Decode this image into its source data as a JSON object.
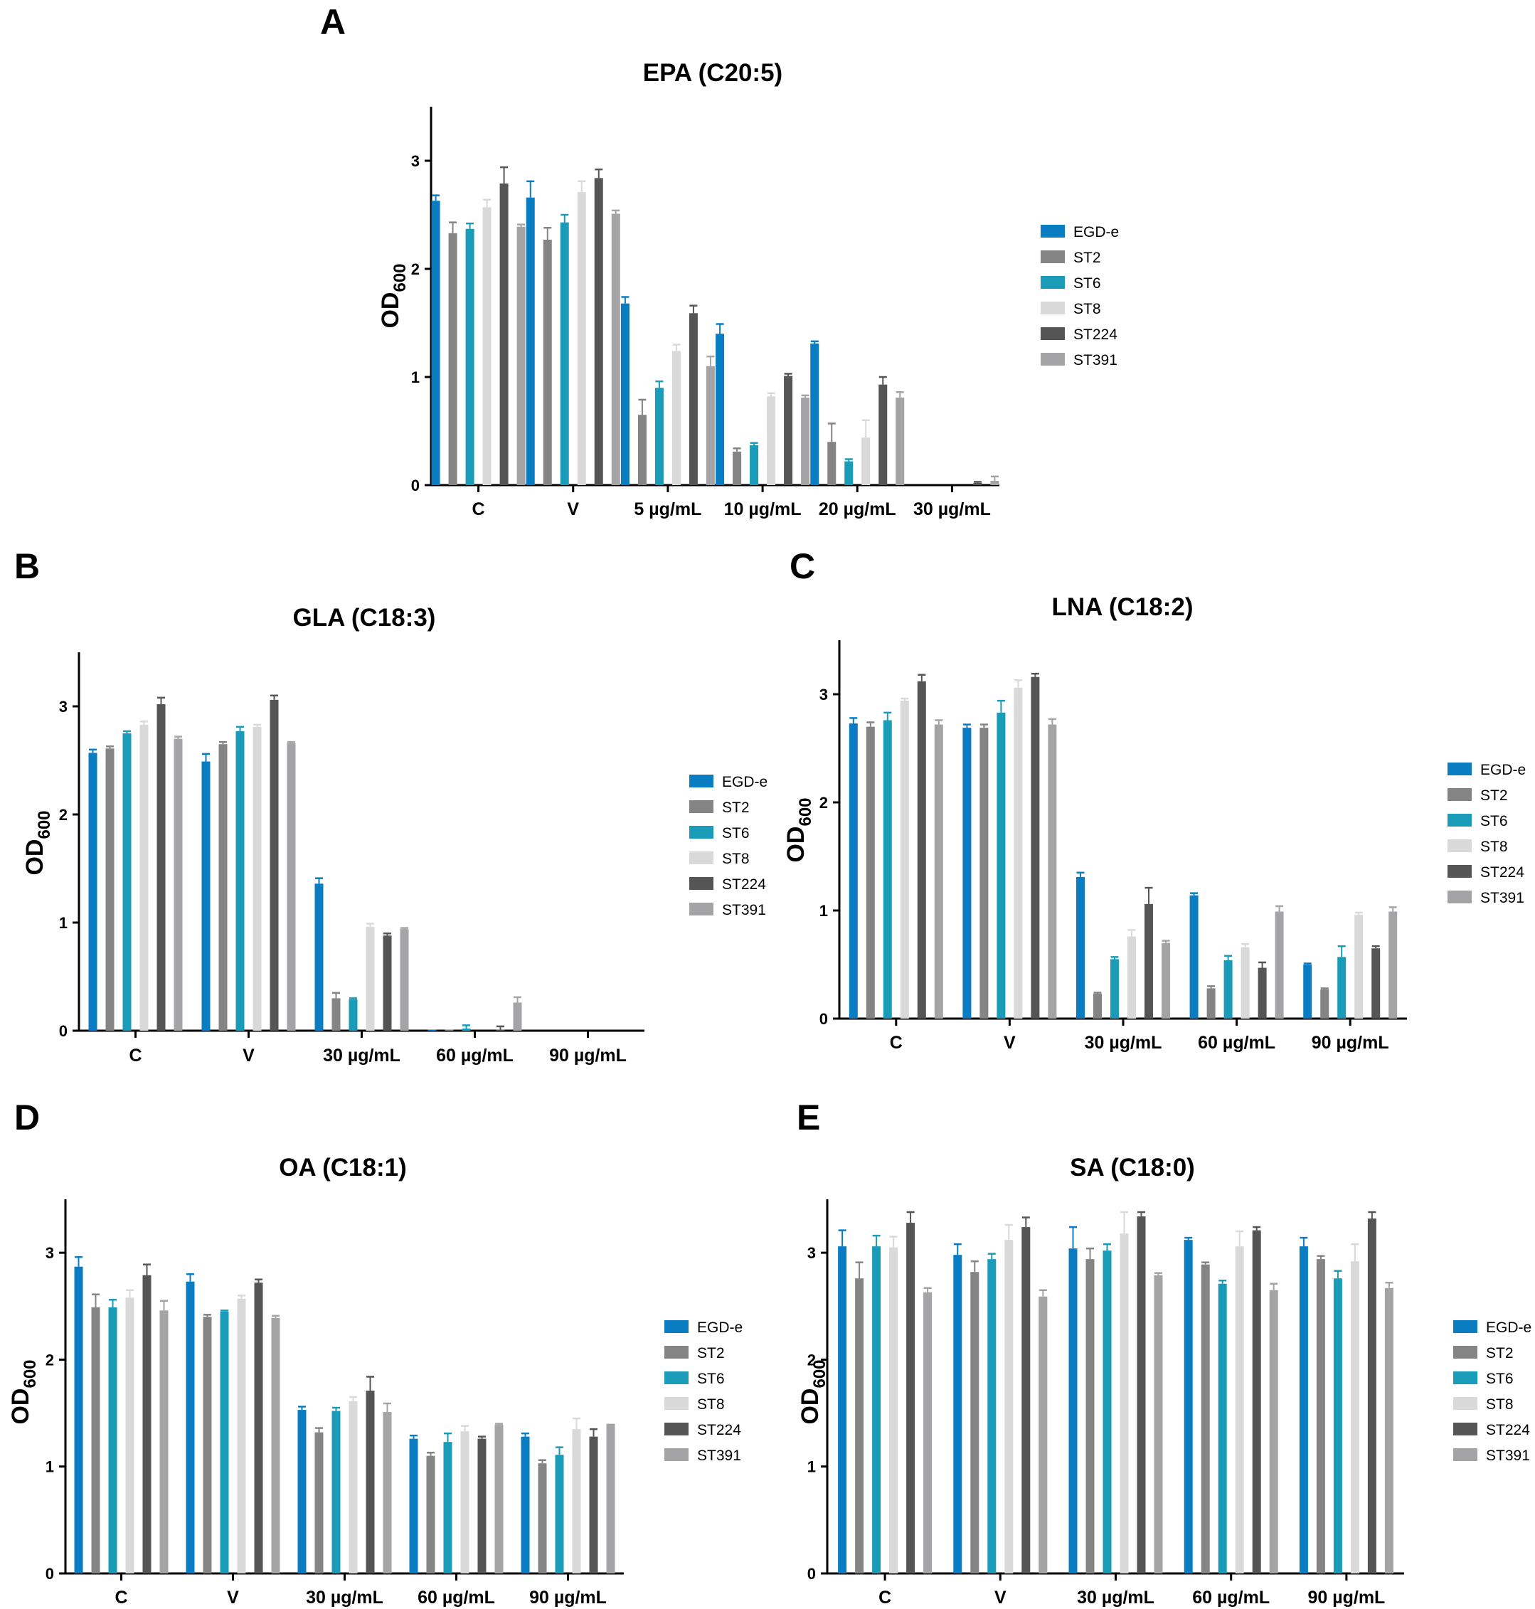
{
  "figure": {
    "background": "#ffffff"
  },
  "series_style": [
    {
      "name": "EGD-e",
      "color": "#0a7dc2"
    },
    {
      "name": "ST2",
      "color": "#848484"
    },
    {
      "name": "ST6",
      "color": "#1a9bb7"
    },
    {
      "name": "ST8",
      "color": "#d9d9d9"
    },
    {
      "name": "ST224",
      "color": "#555555"
    },
    {
      "name": "ST391",
      "color": "#a4a4a6"
    }
  ],
  "chart_data": [
    {
      "panel": "A",
      "type": "bar",
      "title": "EPA (C20:5)",
      "ylabel": "OD600",
      "ylabel_main": "OD",
      "ylabel_sub": "600",
      "ylim": [
        0,
        3.5
      ],
      "yticks": [
        "0",
        "1",
        "2",
        "3"
      ],
      "categories": [
        "C",
        "V",
        "5 µg/mL",
        "10 µg/mL",
        "20 µg/mL",
        "30 µg/mL"
      ],
      "series": [
        {
          "name": "EGD-e",
          "values": [
            2.63,
            2.66,
            1.68,
            1.4,
            1.31,
            0.0
          ],
          "errors": [
            0.05,
            0.15,
            0.06,
            0.09,
            0.02,
            0.0
          ]
        },
        {
          "name": "ST2",
          "values": [
            2.33,
            2.27,
            0.65,
            0.31,
            0.4,
            0.0
          ],
          "errors": [
            0.1,
            0.11,
            0.14,
            0.03,
            0.17,
            0.0
          ]
        },
        {
          "name": "ST6",
          "values": [
            2.37,
            2.43,
            0.9,
            0.37,
            0.22,
            0.0
          ],
          "errors": [
            0.05,
            0.07,
            0.06,
            0.02,
            0.02,
            0.0
          ]
        },
        {
          "name": "ST8",
          "values": [
            2.57,
            2.71,
            1.24,
            0.82,
            0.44,
            0.0
          ],
          "errors": [
            0.07,
            0.1,
            0.06,
            0.03,
            0.16,
            0.0
          ]
        },
        {
          "name": "ST224",
          "values": [
            2.79,
            2.84,
            1.59,
            1.01,
            0.93,
            0.02
          ],
          "errors": [
            0.15,
            0.08,
            0.07,
            0.02,
            0.07,
            0.01
          ]
        },
        {
          "name": "ST391",
          "values": [
            2.39,
            2.51,
            1.1,
            0.81,
            0.81,
            0.04
          ],
          "errors": [
            0.02,
            0.03,
            0.09,
            0.02,
            0.05,
            0.04
          ]
        }
      ]
    },
    {
      "panel": "B",
      "type": "bar",
      "title": "GLA (C18:3)",
      "ylabel": "OD600",
      "ylabel_main": "OD",
      "ylabel_sub": "600",
      "ylim": [
        0,
        3.5
      ],
      "yticks": [
        "0",
        "1",
        "2",
        "3"
      ],
      "categories": [
        "C",
        "V",
        "30 µg/mL",
        "60  µg/mL",
        "90 µg/mL"
      ],
      "series": [
        {
          "name": "EGD-e",
          "values": [
            2.57,
            2.49,
            1.36,
            0.01,
            0.0
          ],
          "errors": [
            0.03,
            0.07,
            0.05,
            0.0,
            0.0
          ]
        },
        {
          "name": "ST2",
          "values": [
            2.61,
            2.65,
            0.3,
            0.01,
            0.0
          ],
          "errors": [
            0.02,
            0.02,
            0.05,
            0.0,
            0.0
          ]
        },
        {
          "name": "ST6",
          "values": [
            2.75,
            2.77,
            0.29,
            0.02,
            0.0
          ],
          "errors": [
            0.02,
            0.04,
            0.01,
            0.03,
            0.0
          ]
        },
        {
          "name": "ST8",
          "values": [
            2.83,
            2.81,
            0.96,
            0.0,
            0.0
          ],
          "errors": [
            0.03,
            0.02,
            0.03,
            0.0,
            0.0
          ]
        },
        {
          "name": "ST224",
          "values": [
            3.02,
            3.06,
            0.88,
            0.01,
            0.0
          ],
          "errors": [
            0.06,
            0.04,
            0.02,
            0.03,
            0.0
          ]
        },
        {
          "name": "ST391",
          "values": [
            2.7,
            2.66,
            0.94,
            0.26,
            0.0
          ],
          "errors": [
            0.02,
            0.01,
            0.01,
            0.05,
            0.0
          ]
        }
      ]
    },
    {
      "panel": "C",
      "type": "bar",
      "title": "LNA (C18:2)",
      "ylabel": "OD600",
      "ylabel_main": "OD",
      "ylabel_sub": "600",
      "ylim": [
        0,
        3.5
      ],
      "yticks": [
        "0",
        "1",
        "2",
        "3"
      ],
      "categories": [
        "C",
        "V",
        "30 µg/mL",
        "60 µg/mL",
        "90 µg/mL"
      ],
      "series": [
        {
          "name": "EGD-e",
          "values": [
            2.73,
            2.69,
            1.31,
            1.14,
            0.5
          ],
          "errors": [
            0.05,
            0.03,
            0.04,
            0.02,
            0.01
          ]
        },
        {
          "name": "ST2",
          "values": [
            2.7,
            2.69,
            0.23,
            0.28,
            0.27
          ],
          "errors": [
            0.04,
            0.03,
            0.01,
            0.02,
            0.01
          ]
        },
        {
          "name": "ST6",
          "values": [
            2.76,
            2.83,
            0.55,
            0.54,
            0.57
          ],
          "errors": [
            0.07,
            0.11,
            0.02,
            0.04,
            0.1
          ]
        },
        {
          "name": "ST8",
          "values": [
            2.94,
            3.06,
            0.76,
            0.66,
            0.96
          ],
          "errors": [
            0.02,
            0.07,
            0.06,
            0.03,
            0.02
          ]
        },
        {
          "name": "ST224",
          "values": [
            3.12,
            3.16,
            1.06,
            0.47,
            0.65
          ],
          "errors": [
            0.06,
            0.03,
            0.15,
            0.05,
            0.02
          ]
        },
        {
          "name": "ST391",
          "values": [
            2.72,
            2.72,
            0.7,
            0.99,
            0.99
          ],
          "errors": [
            0.04,
            0.05,
            0.02,
            0.05,
            0.04
          ]
        }
      ]
    },
    {
      "panel": "D",
      "type": "bar",
      "title": "OA (C18:1)",
      "ylabel": "OD600",
      "ylabel_main": "OD",
      "ylabel_sub": "600",
      "ylim": [
        0,
        3.5
      ],
      "yticks": [
        "0",
        "1",
        "2",
        "3"
      ],
      "categories": [
        "C",
        "V",
        "30 µg/mL",
        "60 µg/mL",
        "90 µg/mL"
      ],
      "series": [
        {
          "name": "EGD-e",
          "values": [
            2.87,
            2.73,
            1.53,
            1.26,
            1.28
          ],
          "errors": [
            0.09,
            0.07,
            0.03,
            0.03,
            0.03
          ]
        },
        {
          "name": "ST2",
          "values": [
            2.49,
            2.4,
            1.32,
            1.1,
            1.03
          ],
          "errors": [
            0.12,
            0.02,
            0.04,
            0.03,
            0.03
          ]
        },
        {
          "name": "ST6",
          "values": [
            2.49,
            2.45,
            1.52,
            1.23,
            1.11
          ],
          "errors": [
            0.07,
            0.01,
            0.03,
            0.08,
            0.07
          ]
        },
        {
          "name": "ST8",
          "values": [
            2.58,
            2.57,
            1.61,
            1.33,
            1.35
          ],
          "errors": [
            0.07,
            0.03,
            0.04,
            0.05,
            0.1
          ]
        },
        {
          "name": "ST224",
          "values": [
            2.79,
            2.72,
            1.71,
            1.26,
            1.28
          ],
          "errors": [
            0.1,
            0.03,
            0.13,
            0.02,
            0.07
          ]
        },
        {
          "name": "ST391",
          "values": [
            2.46,
            2.39,
            1.51,
            1.39,
            1.4
          ],
          "errors": [
            0.09,
            0.02,
            0.08,
            0.01,
            0.0
          ]
        }
      ]
    },
    {
      "panel": "E",
      "type": "bar",
      "title": "SA (C18:0)",
      "ylabel": "OD600",
      "ylabel_main": "OD",
      "ylabel_sub": "600",
      "ylim": [
        0,
        3.5
      ],
      "yticks": [
        "0",
        "1",
        "2",
        "3"
      ],
      "categories": [
        "C",
        "V",
        "30 µg/mL",
        "60 µg/mL",
        "90 µg/mL"
      ],
      "series": [
        {
          "name": "EGD-e",
          "values": [
            3.06,
            2.98,
            3.04,
            3.12,
            3.06
          ],
          "errors": [
            0.15,
            0.1,
            0.2,
            0.02,
            0.08
          ]
        },
        {
          "name": "ST2",
          "values": [
            2.76,
            2.82,
            2.94,
            2.89,
            2.94
          ],
          "errors": [
            0.15,
            0.1,
            0.1,
            0.02,
            0.03
          ]
        },
        {
          "name": "ST6",
          "values": [
            3.06,
            2.94,
            3.02,
            2.71,
            2.76
          ],
          "errors": [
            0.1,
            0.05,
            0.06,
            0.03,
            0.07
          ]
        },
        {
          "name": "ST8",
          "values": [
            3.05,
            3.12,
            3.18,
            3.06,
            2.92
          ],
          "errors": [
            0.1,
            0.14,
            0.2,
            0.14,
            0.16
          ]
        },
        {
          "name": "ST224",
          "values": [
            3.28,
            3.24,
            3.34,
            3.21,
            3.32
          ],
          "errors": [
            0.1,
            0.09,
            0.04,
            0.03,
            0.06
          ]
        },
        {
          "name": "ST391",
          "values": [
            2.63,
            2.59,
            2.79,
            2.65,
            2.67
          ],
          "errors": [
            0.04,
            0.06,
            0.02,
            0.06,
            0.05
          ]
        }
      ]
    }
  ]
}
